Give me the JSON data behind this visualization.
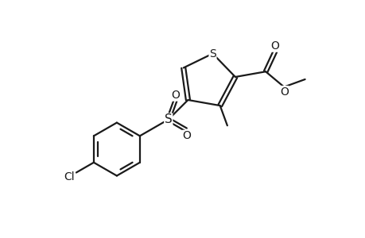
{
  "bg_color": "#ffffff",
  "line_color": "#1a1a1a",
  "line_width": 1.6,
  "font_size": 10,
  "figsize": [
    4.6,
    3.0
  ],
  "dpi": 100,
  "xlim": [
    -0.5,
    5.0
  ],
  "ylim": [
    -2.2,
    2.2
  ]
}
